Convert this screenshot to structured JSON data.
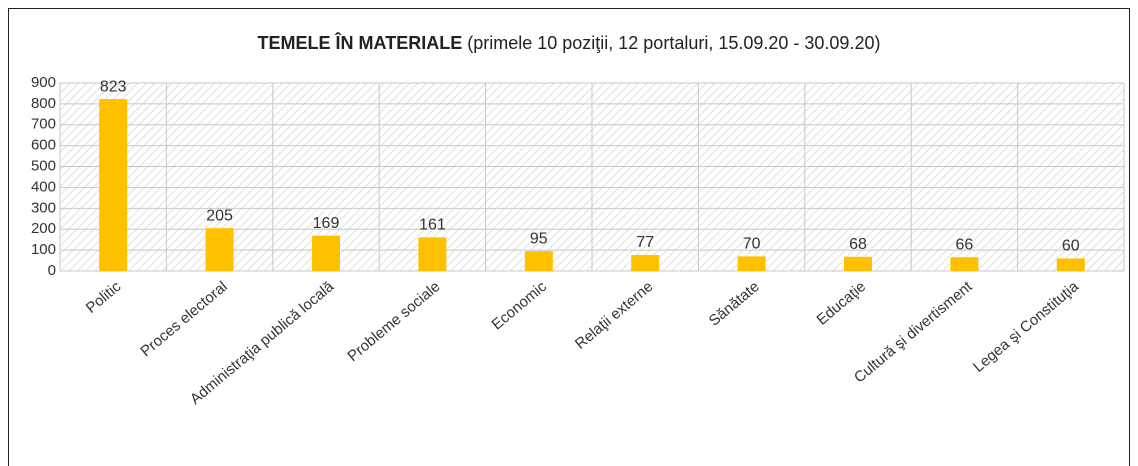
{
  "chart_data": {
    "type": "bar",
    "title": "TEMELE ÎN MATERIALE",
    "subtitle": "(primele 10 poziţii, 12 portaluri, 15.09.20 - 30.09.20)",
    "categories": [
      "Politic",
      "Proces electoral",
      "Administraţia publică locală",
      "Probleme sociale",
      "Economic",
      "Relaţii externe",
      "Sănătate",
      "Educaţie",
      "Cultură şi divertisment",
      "Legea şi Constituţia"
    ],
    "values": [
      823,
      205,
      169,
      161,
      95,
      77,
      70,
      68,
      66,
      60
    ],
    "color": "#ffc000",
    "ylim": [
      0,
      900
    ],
    "yticks": [
      0,
      100,
      200,
      300,
      400,
      500,
      600,
      700,
      800,
      900
    ],
    "grid": true
  }
}
